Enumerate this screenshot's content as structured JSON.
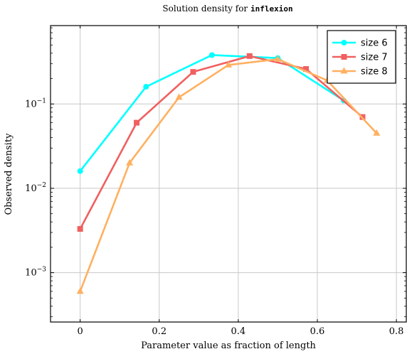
{
  "chart_data": {
    "type": "line",
    "title_prefix": "Solution density for ",
    "title_code": "inflexion",
    "xlabel": "Parameter value as fraction of length",
    "ylabel": "Observed density",
    "xlim": [
      -0.075,
      0.825
    ],
    "ylim": [
      0.00026,
      0.85
    ],
    "yscale": "log",
    "xticks": [
      0,
      0.2,
      0.4,
      0.6,
      0.8
    ],
    "xtick_labels": [
      "0",
      "0.2",
      "0.4",
      "0.6",
      "0.8"
    ],
    "yticks": [
      0.001,
      0.01,
      0.1
    ],
    "ytick_base": "10",
    "ytick_exponents": [
      "−3",
      "−2",
      "−1"
    ],
    "grid": true,
    "legend_position": "top-right",
    "series": [
      {
        "name": "size 6",
        "color": "#00ffff",
        "marker": "circle",
        "x": [
          0,
          0.1667,
          0.3333,
          0.5,
          0.6667
        ],
        "y": [
          0.016,
          0.16,
          0.38,
          0.35,
          0.11
        ]
      },
      {
        "name": "size 7",
        "color": "#f06060",
        "marker": "square",
        "x": [
          0,
          0.1429,
          0.2857,
          0.4286,
          0.5714,
          0.7143
        ],
        "y": [
          0.0033,
          0.06,
          0.24,
          0.37,
          0.26,
          0.07
        ]
      },
      {
        "name": "size 8",
        "color": "#ffb060",
        "marker": "triangle",
        "x": [
          0,
          0.125,
          0.25,
          0.375,
          0.5,
          0.625,
          0.75
        ],
        "y": [
          0.0006,
          0.02,
          0.12,
          0.29,
          0.34,
          0.19,
          0.045
        ]
      }
    ]
  }
}
